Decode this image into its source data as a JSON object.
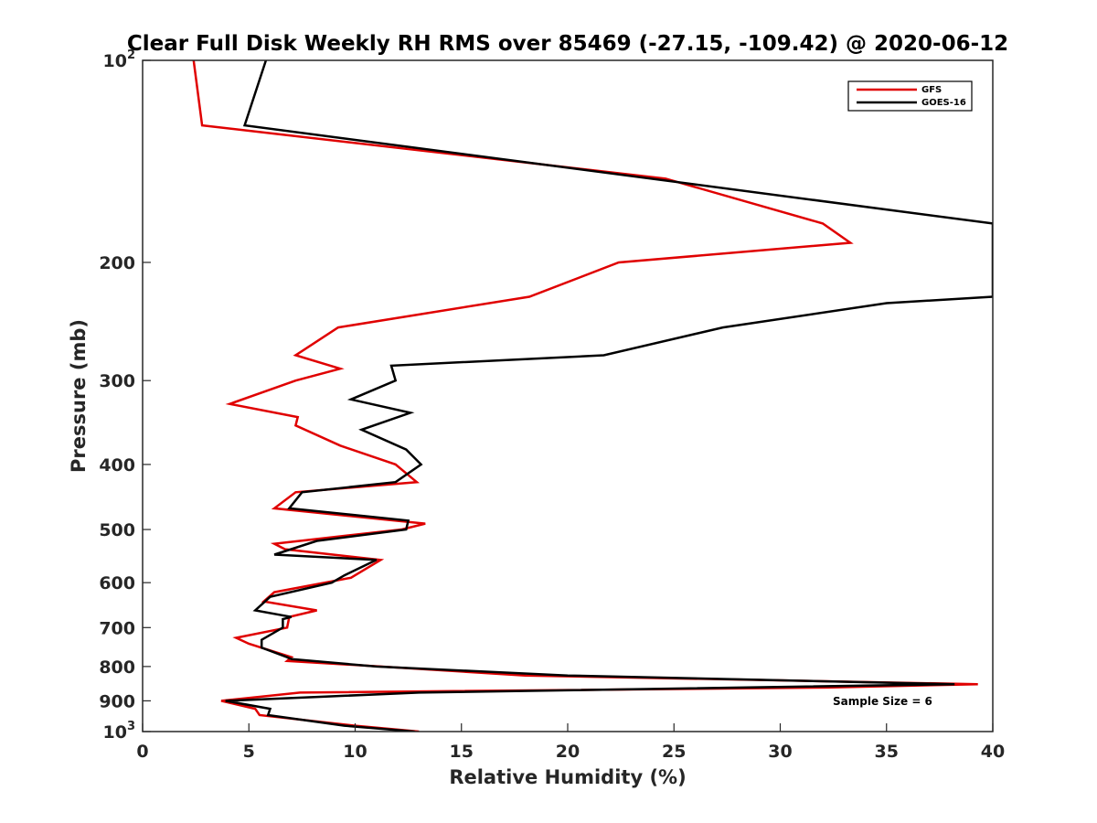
{
  "chart_data": {
    "type": "line",
    "title": "Clear Full Disk Weekly RH RMS over 85469 (-27.15, -109.42) @ 2020-06-12",
    "xlabel": "Relative Humidity (%)",
    "ylabel": "Pressure (mb)",
    "xlim": [
      0,
      40
    ],
    "ylim": [
      100,
      1000
    ],
    "yscale": "log",
    "y_reversed": true,
    "grid": false,
    "legend_position": "top-right",
    "xticks": [
      "0",
      "5",
      "10",
      "15",
      "20",
      "25",
      "30",
      "35",
      "40"
    ],
    "yticks": [
      {
        "base": "10",
        "exp": "2"
      },
      {
        "label": "200"
      },
      {
        "label": "300"
      },
      {
        "label": "400"
      },
      {
        "label": "500"
      },
      {
        "label": "600"
      },
      {
        "label": "700"
      },
      {
        "label": "800"
      },
      {
        "label": "900"
      },
      {
        "base": "10",
        "exp": "3"
      }
    ],
    "annotation": "Sample Size = 6",
    "series": [
      {
        "name": "GFS",
        "color": "#e00000",
        "points": [
          [
            2.4,
            100
          ],
          [
            2.8,
            125
          ],
          [
            24.6,
            150
          ],
          [
            32,
            175
          ],
          [
            33.3,
            187
          ],
          [
            22.4,
            200
          ],
          [
            18.2,
            225
          ],
          [
            9.2,
            250
          ],
          [
            7.2,
            275
          ],
          [
            9.3,
            288
          ],
          [
            7.2,
            300
          ],
          [
            4.1,
            325
          ],
          [
            7.3,
            340
          ],
          [
            7.2,
            350
          ],
          [
            9.3,
            375
          ],
          [
            11.9,
            400
          ],
          [
            12.9,
            425
          ],
          [
            7.2,
            440
          ],
          [
            6.2,
            465
          ],
          [
            13.3,
            490
          ],
          [
            12.2,
            500
          ],
          [
            6.2,
            525
          ],
          [
            6.7,
            535
          ],
          [
            11.2,
            555
          ],
          [
            9.8,
            590
          ],
          [
            6.2,
            620
          ],
          [
            5.7,
            640
          ],
          [
            8.2,
            660
          ],
          [
            6.9,
            675
          ],
          [
            6.8,
            700
          ],
          [
            4.4,
            725
          ],
          [
            5,
            740
          ],
          [
            7,
            775
          ],
          [
            6.8,
            785
          ],
          [
            11.2,
            800
          ],
          [
            18,
            825
          ],
          [
            39.3,
            850
          ],
          [
            32.2,
            860
          ],
          [
            7.4,
            875
          ],
          [
            3.7,
            900
          ],
          [
            5.3,
            925
          ],
          [
            5.5,
            945
          ],
          [
            10,
            980
          ],
          [
            13,
            1000
          ]
        ]
      },
      {
        "name": "GOES-16",
        "color": "#000000",
        "points": [
          [
            5.8,
            100
          ],
          [
            4.8,
            125
          ],
          [
            40,
            175
          ],
          [
            40,
            225
          ],
          [
            35,
            230
          ],
          [
            27.3,
            250
          ],
          [
            21.7,
            275
          ],
          [
            11.7,
            285
          ],
          [
            11.9,
            300
          ],
          [
            9.8,
            320
          ],
          [
            12.6,
            335
          ],
          [
            10.3,
            355
          ],
          [
            12.4,
            380
          ],
          [
            13.1,
            400
          ],
          [
            11.9,
            425
          ],
          [
            7.5,
            440
          ],
          [
            6.9,
            465
          ],
          [
            12.5,
            485
          ],
          [
            12.4,
            500
          ],
          [
            8.2,
            520
          ],
          [
            6.2,
            545
          ],
          [
            11,
            555
          ],
          [
            9.5,
            585
          ],
          [
            8.9,
            600
          ],
          [
            6,
            630
          ],
          [
            5.3,
            660
          ],
          [
            7,
            675
          ],
          [
            6.6,
            680
          ],
          [
            6.6,
            700
          ],
          [
            5.6,
            730
          ],
          [
            5.6,
            750
          ],
          [
            6.8,
            775
          ],
          [
            7,
            780
          ],
          [
            11,
            800
          ],
          [
            20,
            825
          ],
          [
            38.2,
            850
          ],
          [
            13,
            875
          ],
          [
            3.9,
            900
          ],
          [
            6,
            925
          ],
          [
            5.9,
            945
          ],
          [
            9.5,
            980
          ],
          [
            12.8,
            1000
          ]
        ]
      }
    ]
  }
}
